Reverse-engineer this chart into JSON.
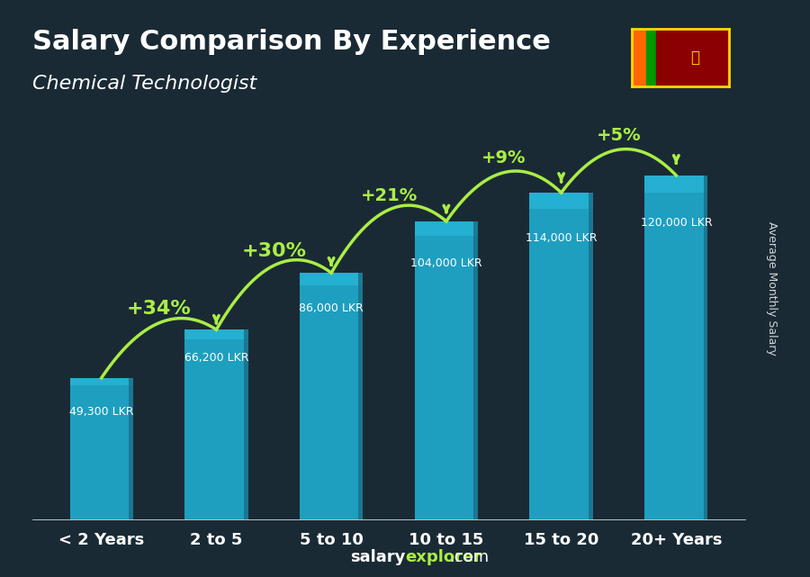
{
  "title": "Salary Comparison By Experience",
  "subtitle": "Chemical Technologist",
  "categories": [
    "< 2 Years",
    "2 to 5",
    "5 to 10",
    "10 to 15",
    "15 to 20",
    "20+ Years"
  ],
  "values": [
    49300,
    66200,
    86000,
    104000,
    114000,
    120000
  ],
  "labels": [
    "49,300 LKR",
    "66,200 LKR",
    "86,000 LKR",
    "104,000 LKR",
    "114,000 LKR",
    "120,000 LKR"
  ],
  "pct_changes": [
    "+34%",
    "+30%",
    "+21%",
    "+9%",
    "+5%"
  ],
  "bar_color_top": "#29b6d8",
  "bar_color_mid": "#1e9fc0",
  "bar_color_bottom": "#186e87",
  "bg_color": "#1a2a35",
  "text_color": "#ffffff",
  "green_color": "#aaee44",
  "footer_text": "salaryexplorer.com",
  "footer_salary": "salary",
  "footer_explorer": "explorer",
  "ylabel": "Average Monthly Salary",
  "ylim": [
    0,
    145000
  ]
}
